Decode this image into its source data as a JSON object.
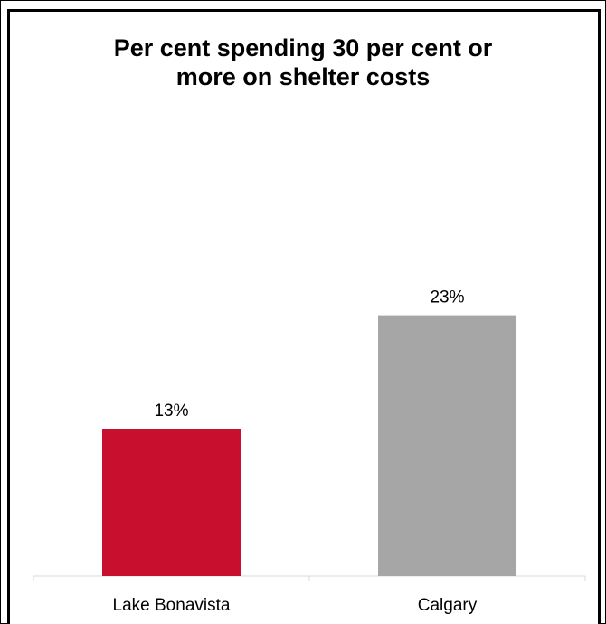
{
  "chart_data": {
    "type": "bar",
    "title_lines": [
      "Per cent spending 30 per cent or",
      "more on shelter costs"
    ],
    "categories": [
      "Lake Bonavista",
      "Calgary"
    ],
    "values": [
      13,
      23
    ],
    "data_labels": [
      "13%",
      "23%"
    ],
    "colors": [
      "#C8102E",
      "#A6A6A6"
    ],
    "ylim": [
      0,
      30
    ],
    "grid": false,
    "legend": "none",
    "xlabel": "",
    "ylabel": ""
  }
}
